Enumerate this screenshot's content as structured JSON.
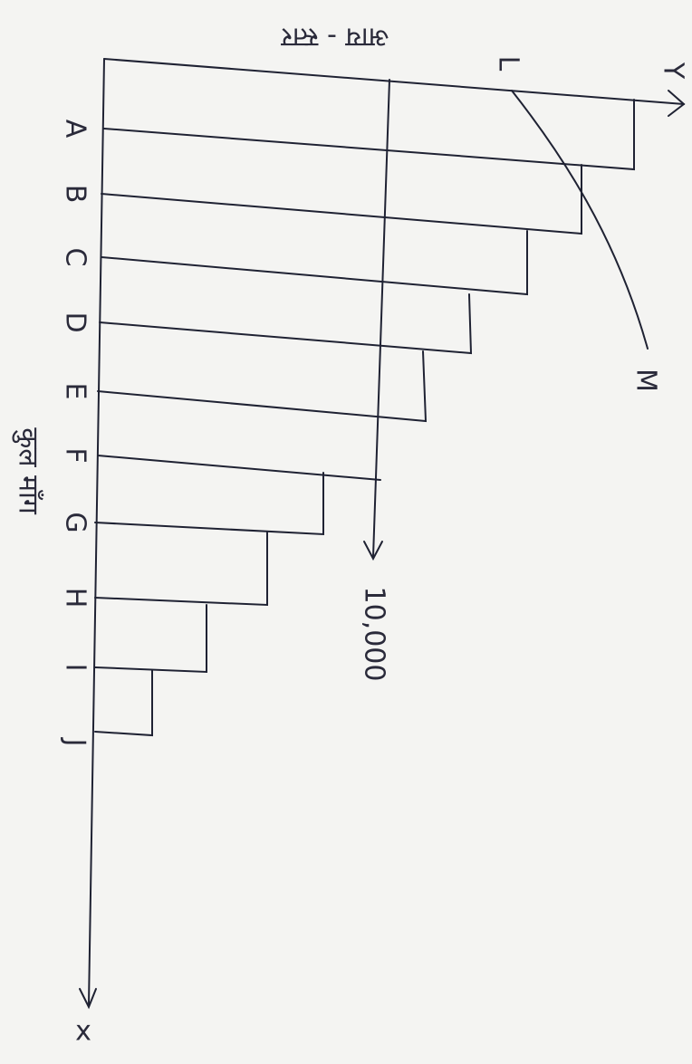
{
  "header": {
    "title": "आय - स्तर"
  },
  "axes": {
    "x": "x",
    "y": "Y"
  },
  "side_label": "कुल माँग",
  "marker": "10,000",
  "curve": {
    "start": "L",
    "end": "M"
  },
  "categories": [
    "A",
    "B",
    "C",
    "D",
    "E",
    "F",
    "G",
    "H",
    "I",
    "J"
  ]
}
